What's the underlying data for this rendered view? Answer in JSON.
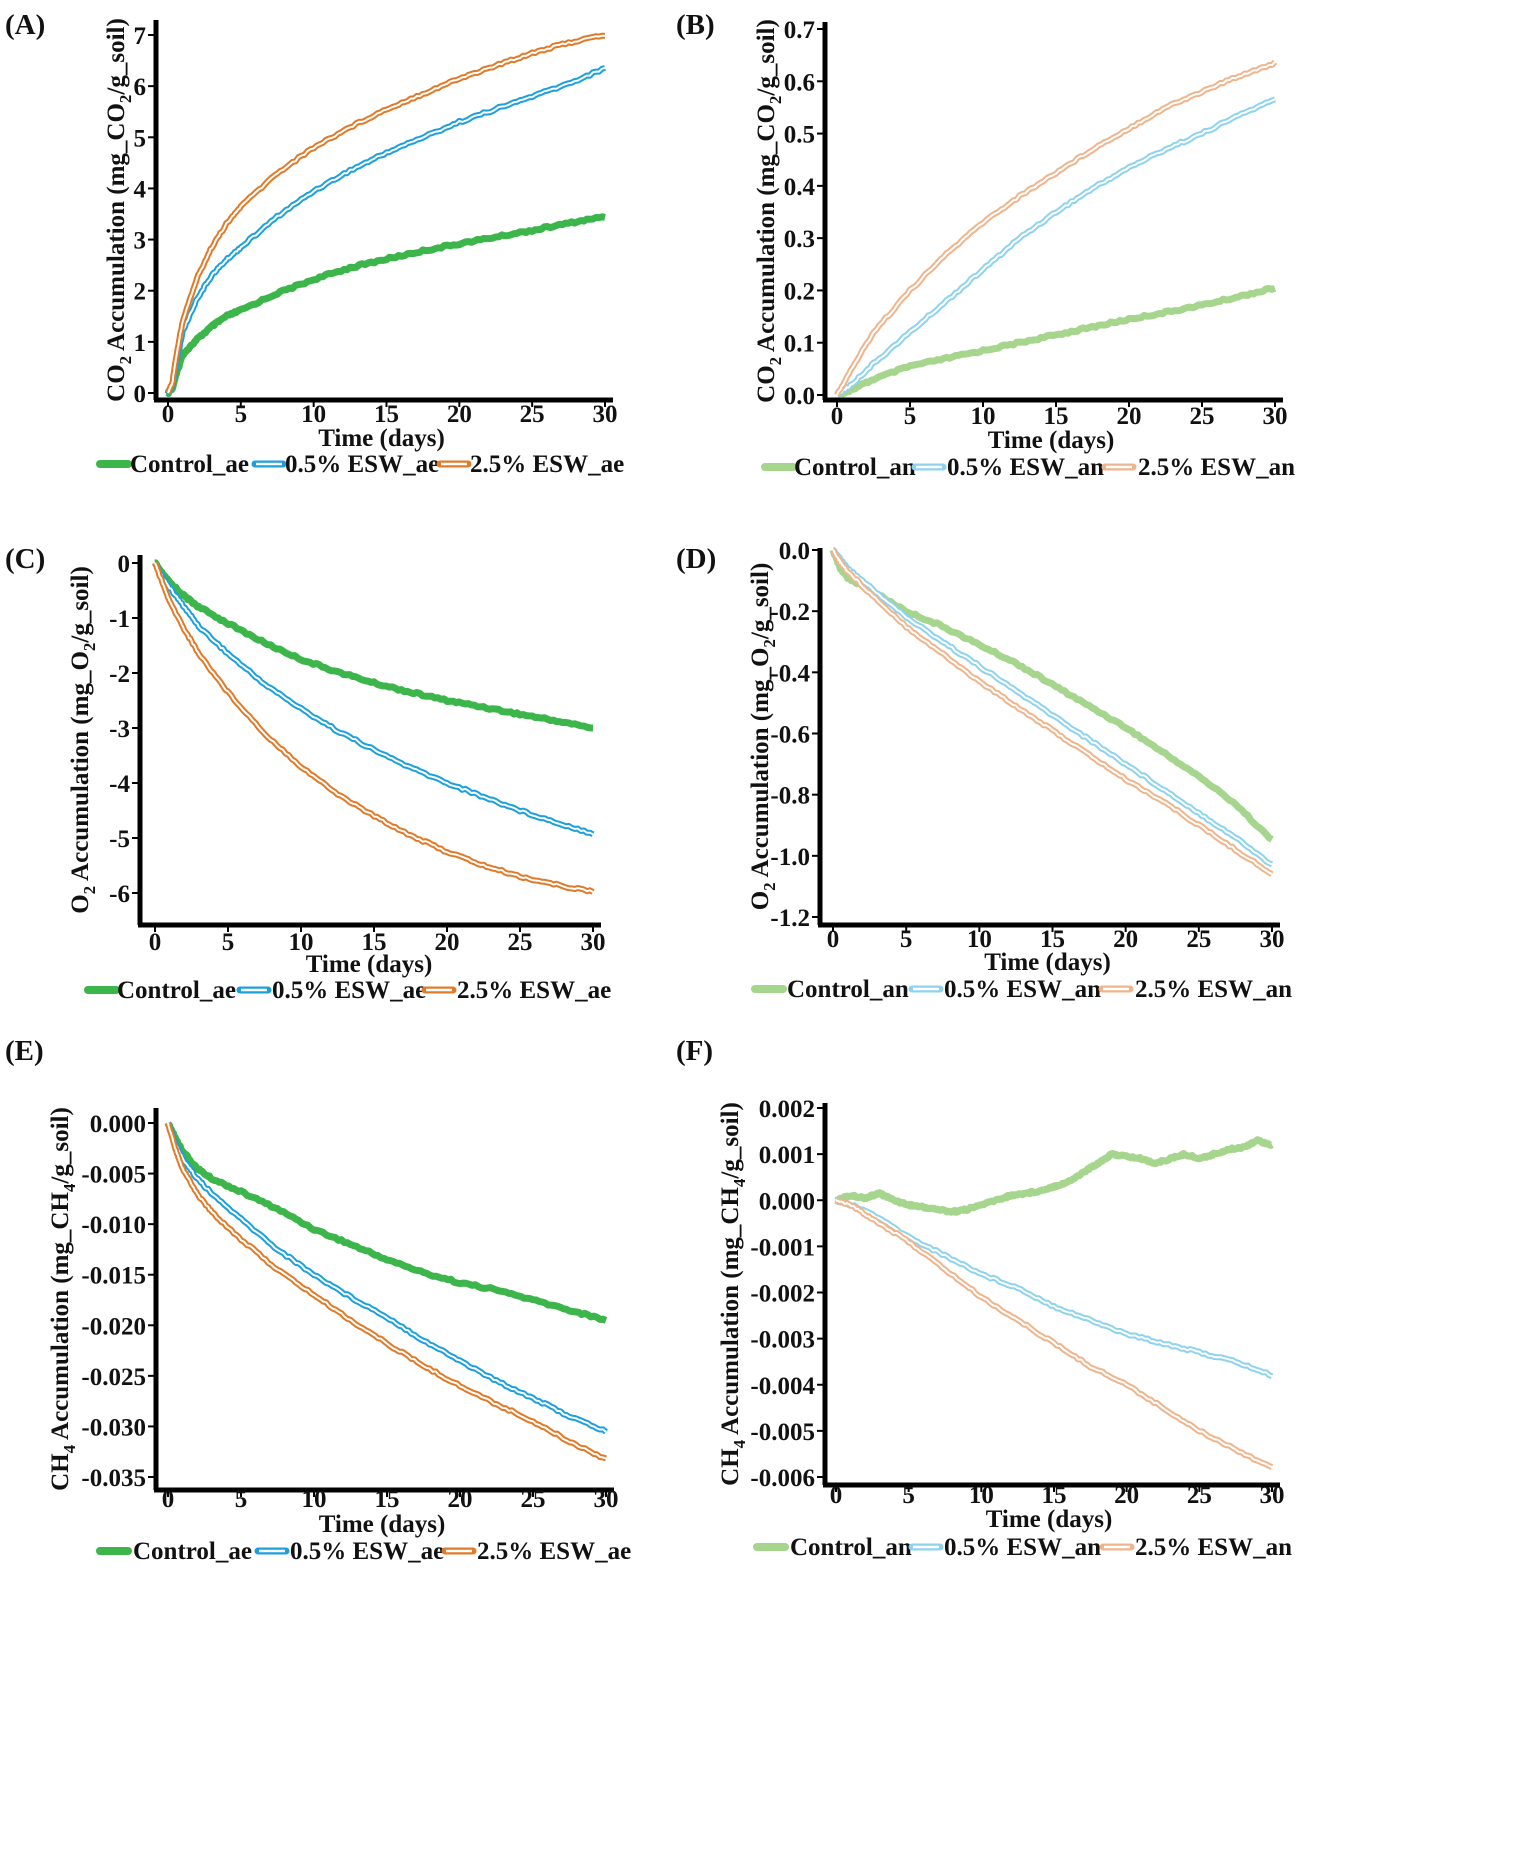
{
  "figure": {
    "colors": {
      "control_ae": "#3cb54a",
      "esw05_ae": "#1ba0dd",
      "esw25_ae": "#e07a28",
      "control_an": "#a6d58e",
      "esw05_an": "#8dd3ee",
      "esw25_an": "#f0b48c",
      "axis": "#000000"
    }
  },
  "chart_data": [
    {
      "panel": "(A)",
      "type": "line",
      "xlabel": "Time (days)",
      "ylabel": {
        "main": "CO",
        "sub": "2",
        "rest": " Accumulation (mg_CO",
        "sub2": "2",
        "tail": "/g_soil)"
      },
      "xlim": [
        0,
        30
      ],
      "ylim": [
        0,
        7.2
      ],
      "xticks": [
        0,
        5,
        10,
        15,
        20,
        25,
        30
      ],
      "xtick_labels": [
        "0",
        "5",
        "10",
        "15",
        "20",
        "25",
        "30"
      ],
      "yticks": [
        0,
        1,
        2,
        3,
        4,
        5,
        6,
        7
      ],
      "ytick_labels": [
        "0",
        "1",
        "2",
        "3",
        "4",
        "5",
        "6",
        "7"
      ],
      "series": [
        {
          "name": "Control_ae",
          "style": "solid",
          "color": "#3cb54a",
          "x": [
            0,
            0.3,
            0.5,
            1,
            2,
            3,
            4,
            5,
            7.5,
            10,
            12.5,
            15,
            17.5,
            20,
            22.5,
            25,
            27.5,
            30
          ],
          "values": [
            0,
            0.1,
            0.3,
            0.75,
            1.05,
            1.3,
            1.5,
            1.62,
            1.95,
            2.22,
            2.45,
            2.62,
            2.78,
            2.92,
            3.05,
            3.18,
            3.32,
            3.45
          ]
        },
        {
          "name": "0.5% ESW_ae",
          "style": "double",
          "color": "#1ba0dd",
          "x": [
            0,
            0.3,
            0.5,
            1,
            2,
            3,
            4,
            5,
            7.5,
            10,
            12.5,
            15,
            17.5,
            20,
            22.5,
            25,
            27.5,
            30
          ],
          "values": [
            0,
            0.15,
            0.45,
            1.2,
            1.85,
            2.3,
            2.6,
            2.85,
            3.45,
            3.95,
            4.35,
            4.7,
            5.0,
            5.3,
            5.55,
            5.8,
            6.05,
            6.35
          ]
        },
        {
          "name": "2.5% ESW_ae",
          "style": "double",
          "color": "#e07a28",
          "x": [
            0,
            0.3,
            0.5,
            1,
            2,
            3,
            4,
            5,
            7.5,
            10,
            12.5,
            15,
            17.5,
            20,
            22.5,
            25,
            27.5,
            30
          ],
          "values": [
            0,
            0.2,
            0.6,
            1.4,
            2.25,
            2.85,
            3.3,
            3.65,
            4.3,
            4.8,
            5.2,
            5.55,
            5.85,
            6.15,
            6.4,
            6.65,
            6.85,
            7.0
          ]
        }
      ],
      "legend": [
        "Control_ae",
        "0.5% ESW_ae",
        "2.5% ESW_ae"
      ]
    },
    {
      "panel": "(B)",
      "type": "line",
      "xlabel": "Time (days)",
      "ylabel": {
        "main": "CO",
        "sub": "2",
        "rest": " Accumulation (mg_CO",
        "sub2": "2",
        "tail": "/g_soil)"
      },
      "xlim": [
        0,
        30
      ],
      "ylim": [
        0,
        0.7
      ],
      "xticks": [
        0,
        5,
        10,
        15,
        20,
        25,
        30
      ],
      "xtick_labels": [
        "0",
        "5",
        "10",
        "15",
        "20",
        "25",
        "30"
      ],
      "yticks": [
        0,
        0.1,
        0.2,
        0.3,
        0.4,
        0.5,
        0.6,
        0.7
      ],
      "ytick_labels": [
        "0.0",
        "0.1",
        "0.2",
        "0.3",
        "0.4",
        "0.5",
        "0.6",
        "0.7"
      ],
      "series": [
        {
          "name": "Control_an",
          "style": "solid",
          "color": "#a6d58e",
          "x": [
            0,
            1,
            2.5,
            5,
            7.5,
            10,
            12.5,
            15,
            17.5,
            20,
            22.5,
            25,
            27.5,
            30
          ],
          "values": [
            0,
            0.01,
            0.03,
            0.055,
            0.07,
            0.085,
            0.1,
            0.115,
            0.13,
            0.145,
            0.158,
            0.172,
            0.188,
            0.205
          ]
        },
        {
          "name": "0.5% ESW_an",
          "style": "double",
          "color": "#8dd3ee",
          "x": [
            0,
            1,
            2.5,
            5,
            7.5,
            10,
            12.5,
            15,
            17.5,
            20,
            22.5,
            25,
            27.5,
            30
          ],
          "values": [
            0,
            0.02,
            0.06,
            0.12,
            0.18,
            0.24,
            0.3,
            0.35,
            0.395,
            0.435,
            0.47,
            0.5,
            0.535,
            0.565
          ]
        },
        {
          "name": "2.5% ESW_an",
          "style": "double",
          "color": "#f0b48c",
          "x": [
            0,
            1,
            2.5,
            5,
            7.5,
            10,
            12.5,
            15,
            17.5,
            20,
            22.5,
            25,
            27.5,
            30
          ],
          "values": [
            0,
            0.05,
            0.12,
            0.2,
            0.27,
            0.33,
            0.38,
            0.425,
            0.47,
            0.51,
            0.55,
            0.58,
            0.61,
            0.635
          ]
        }
      ],
      "legend": [
        "Control_an",
        "0.5% ESW_an",
        "2.5% ESW_an"
      ]
    },
    {
      "panel": "(C)",
      "type": "line",
      "xlabel": "Time (days)",
      "ylabel": {
        "main": "O",
        "sub": "2",
        "rest": " Accumulation (mg_O",
        "sub2": "2",
        "tail": "/g_soil)"
      },
      "xlim": [
        0,
        30
      ],
      "ylim": [
        -6.3,
        0.1
      ],
      "xticks": [
        0,
        5,
        10,
        15,
        20,
        25,
        30
      ],
      "xtick_labels": [
        "0",
        "5",
        "10",
        "15",
        "20",
        "25",
        "30"
      ],
      "yticks": [
        0,
        -1,
        -2,
        -3,
        -4,
        -5,
        -6
      ],
      "ytick_labels": [
        "0",
        "-1",
        "-2",
        "-3",
        "-4",
        "-5",
        "-6"
      ],
      "series": [
        {
          "name": "Control_ae",
          "style": "solid",
          "color": "#3cb54a",
          "x": [
            0,
            0.5,
            1,
            2,
            3,
            5,
            7.5,
            10,
            12.5,
            15,
            17.5,
            20,
            22.5,
            25,
            27.5,
            30
          ],
          "values": [
            0,
            -0.2,
            -0.35,
            -0.6,
            -0.8,
            -1.1,
            -1.45,
            -1.75,
            -1.98,
            -2.18,
            -2.35,
            -2.5,
            -2.62,
            -2.75,
            -2.87,
            -3.0
          ]
        },
        {
          "name": "0.5% ESW_ae",
          "style": "double",
          "color": "#1ba0dd",
          "x": [
            0,
            0.5,
            1,
            2,
            3,
            5,
            7.5,
            10,
            12.5,
            15,
            17.5,
            20,
            22.5,
            25,
            27.5,
            30
          ],
          "values": [
            0,
            -0.25,
            -0.45,
            -0.8,
            -1.15,
            -1.65,
            -2.2,
            -2.65,
            -3.05,
            -3.4,
            -3.72,
            -4.0,
            -4.25,
            -4.5,
            -4.72,
            -4.92
          ]
        },
        {
          "name": "2.5% ESW_ae",
          "style": "double",
          "color": "#e07a28",
          "x": [
            0,
            0.5,
            1,
            2,
            3,
            5,
            7.5,
            10,
            12.5,
            15,
            17.5,
            20,
            22.5,
            25,
            27.5,
            30
          ],
          "values": [
            0,
            -0.35,
            -0.7,
            -1.2,
            -1.65,
            -2.35,
            -3.1,
            -3.7,
            -4.2,
            -4.6,
            -4.95,
            -5.25,
            -5.5,
            -5.7,
            -5.85,
            -5.98
          ]
        }
      ],
      "legend": [
        "Control_ae",
        "0.5% ESW_ae",
        "2.5% ESW_ae"
      ]
    },
    {
      "panel": "(D)",
      "type": "line",
      "xlabel": "Time (days)",
      "ylabel": {
        "main": "O",
        "sub": "2",
        "rest": " Accumulation (mg_O",
        "sub2": "2",
        "tail": "/g_soil)"
      },
      "xlim": [
        0,
        30
      ],
      "ylim": [
        -1.2,
        0
      ],
      "xticks": [
        0,
        5,
        10,
        15,
        20,
        25,
        30
      ],
      "xtick_labels": [
        "0",
        "5",
        "10",
        "15",
        "20",
        "25",
        "30"
      ],
      "yticks": [
        0,
        -0.2,
        -0.4,
        -0.6,
        -0.8,
        -1.0,
        -1.2
      ],
      "ytick_labels": [
        "0.0",
        "-0.2",
        "-0.4",
        "-0.6",
        "-0.8",
        "-1.0",
        "-1.2"
      ],
      "series": [
        {
          "name": "Control_an",
          "style": "solid",
          "color": "#a6d58e",
          "x": [
            0,
            0.5,
            1,
            2.5,
            5,
            7.5,
            10,
            12.5,
            15,
            17.5,
            20,
            22.5,
            25,
            27.5,
            30
          ],
          "values": [
            0,
            -0.06,
            -0.09,
            -0.13,
            -0.2,
            -0.25,
            -0.31,
            -0.37,
            -0.44,
            -0.51,
            -0.58,
            -0.66,
            -0.74,
            -0.83,
            -0.95
          ]
        },
        {
          "name": "0.5% ESW_an",
          "style": "double",
          "color": "#8dd3ee",
          "x": [
            0,
            0.5,
            1,
            2.5,
            5,
            7.5,
            10,
            12.5,
            15,
            17.5,
            20,
            22.5,
            25,
            27.5,
            30
          ],
          "values": [
            0,
            -0.03,
            -0.06,
            -0.12,
            -0.22,
            -0.3,
            -0.38,
            -0.46,
            -0.54,
            -0.62,
            -0.7,
            -0.78,
            -0.86,
            -0.94,
            -1.03
          ]
        },
        {
          "name": "2.5% ESW_an",
          "style": "double",
          "color": "#f0b48c",
          "x": [
            0,
            0.5,
            1,
            2.5,
            5,
            7.5,
            10,
            12.5,
            15,
            17.5,
            20,
            22.5,
            25,
            27.5,
            30
          ],
          "values": [
            0,
            -0.04,
            -0.07,
            -0.14,
            -0.25,
            -0.34,
            -0.43,
            -0.51,
            -0.59,
            -0.67,
            -0.75,
            -0.82,
            -0.9,
            -0.98,
            -1.06
          ]
        }
      ],
      "legend": [
        "Control_an",
        "0.5% ESW_an",
        "2.5% ESW_an"
      ]
    },
    {
      "panel": "(E)",
      "type": "line",
      "xlabel": "Time (days)",
      "ylabel": {
        "main": "CH",
        "sub": "4",
        "rest": " Accumulation (mg_CH",
        "sub2": "4",
        "tail": "/g_soil)"
      },
      "xlim": [
        0,
        30
      ],
      "ylim": [
        -0.035,
        0.001
      ],
      "xticks": [
        0,
        5,
        10,
        15,
        20,
        25,
        30
      ],
      "xtick_labels": [
        "0",
        "5",
        "10",
        "15",
        "20",
        "25",
        "30"
      ],
      "yticks": [
        0,
        -0.005,
        -0.01,
        -0.015,
        -0.02,
        -0.025,
        -0.03,
        -0.035
      ],
      "ytick_labels": [
        "0.000",
        "-0.005",
        "-0.010",
        "-0.015",
        "-0.020",
        "-0.025",
        "-0.030",
        "-0.035"
      ],
      "series": [
        {
          "name": "Control_ae",
          "style": "solid",
          "color": "#3cb54a",
          "x": [
            0,
            0.5,
            1,
            2,
            3,
            5,
            7.5,
            10,
            12.5,
            15,
            17.5,
            20,
            22.5,
            25,
            27.5,
            30
          ],
          "values": [
            0,
            -0.0015,
            -0.0028,
            -0.0045,
            -0.0055,
            -0.0068,
            -0.0085,
            -0.0105,
            -0.012,
            -0.0135,
            -0.0148,
            -0.0158,
            -0.0165,
            -0.0175,
            -0.0185,
            -0.0195
          ]
        },
        {
          "name": "0.5% ESW_ae",
          "style": "double",
          "color": "#1ba0dd",
          "x": [
            0,
            0.5,
            1,
            2,
            3,
            5,
            7.5,
            10,
            12.5,
            15,
            17.5,
            20,
            22.5,
            25,
            27.5,
            30
          ],
          "values": [
            0,
            -0.002,
            -0.0035,
            -0.0055,
            -0.007,
            -0.0095,
            -0.0125,
            -0.015,
            -0.0172,
            -0.0192,
            -0.0215,
            -0.0235,
            -0.0255,
            -0.0272,
            -0.029,
            -0.0305
          ]
        },
        {
          "name": "2.5% ESW_ae",
          "style": "double",
          "color": "#e07a28",
          "x": [
            0,
            0.5,
            1,
            2,
            3,
            5,
            7.5,
            10,
            12.5,
            15,
            17.5,
            20,
            22.5,
            25,
            27.5,
            30
          ],
          "values": [
            0,
            -0.0025,
            -0.0045,
            -0.007,
            -0.0088,
            -0.0115,
            -0.0145,
            -0.017,
            -0.0195,
            -0.0218,
            -0.024,
            -0.026,
            -0.0278,
            -0.0295,
            -0.0315,
            -0.0332
          ]
        }
      ],
      "legend": [
        "Control_ae",
        "0.5% ESW_ae",
        "2.5% ESW_ae"
      ]
    },
    {
      "panel": "(F)",
      "type": "line",
      "xlabel": "Time (days)",
      "ylabel": {
        "main": "CH",
        "sub": "4",
        "rest": " Accumulation (mg_CH",
        "sub2": "4",
        "tail": "/g_soil)"
      },
      "xlim": [
        0,
        30
      ],
      "ylim": [
        -0.006,
        0.002
      ],
      "xticks": [
        0,
        5,
        10,
        15,
        20,
        25,
        30
      ],
      "xtick_labels": [
        "0",
        "5",
        "10",
        "15",
        "20",
        "25",
        "30"
      ],
      "yticks": [
        0.002,
        0.001,
        0,
        -0.001,
        -0.002,
        -0.003,
        -0.004,
        -0.005,
        -0.006
      ],
      "ytick_labels": [
        "0.002",
        "0.001",
        "0.000",
        "-0.001",
        "-0.002",
        "-0.003",
        "-0.004",
        "-0.005",
        "-0.006"
      ],
      "series": [
        {
          "name": "Control_an",
          "style": "solid",
          "color": "#a6d58e",
          "x": [
            0,
            1,
            2,
            3,
            4,
            5,
            6,
            7,
            8,
            9,
            10,
            11,
            12,
            13,
            14,
            15,
            16,
            17,
            18,
            19,
            20,
            21,
            22,
            23,
            24,
            25,
            26,
            27,
            28,
            29,
            30
          ],
          "values": [
            0,
            0.0001,
            5e-05,
            0.00015,
            0,
            -0.0001,
            -0.00015,
            -0.0002,
            -0.00025,
            -0.0002,
            -0.0001,
            0,
            0.0001,
            0.00015,
            0.0002,
            0.0003,
            0.0004,
            0.0006,
            0.0008,
            0.001,
            0.00095,
            0.0009,
            0.0008,
            0.0009,
            0.001,
            0.0009,
            0.001,
            0.0011,
            0.00115,
            0.0013,
            0.0012
          ]
        },
        {
          "name": "0.5% ESW_an",
          "style": "double",
          "color": "#8dd3ee",
          "x": [
            0,
            1,
            2.5,
            5,
            7.5,
            10,
            12.5,
            15,
            17.5,
            20,
            22.5,
            25,
            27.5,
            30
          ],
          "values": [
            0,
            -0.0001,
            -0.0003,
            -0.0008,
            -0.0012,
            -0.0016,
            -0.0019,
            -0.0023,
            -0.0026,
            -0.0029,
            -0.0031,
            -0.0033,
            -0.0035,
            -0.0038
          ]
        },
        {
          "name": "2.5% ESW_an",
          "style": "double",
          "color": "#f0b48c",
          "x": [
            0,
            1,
            2.5,
            5,
            7.5,
            10,
            12.5,
            15,
            17.5,
            20,
            22.5,
            25,
            27.5,
            30
          ],
          "values": [
            0,
            -0.0001,
            -0.0004,
            -0.0009,
            -0.0015,
            -0.0021,
            -0.0026,
            -0.0031,
            -0.0036,
            -0.004,
            -0.0045,
            -0.005,
            -0.0054,
            -0.0058
          ]
        }
      ],
      "legend": [
        "Control_an",
        "0.5% ESW_an",
        "2.5% ESW_an"
      ]
    }
  ]
}
